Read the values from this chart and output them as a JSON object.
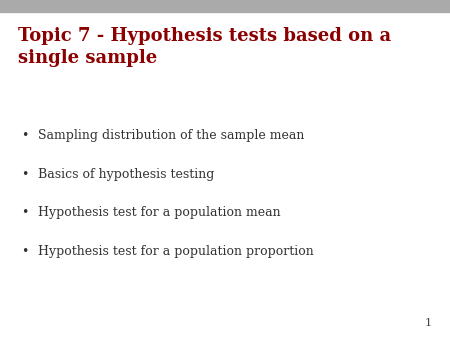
{
  "title_line1": "Topic 7 - Hypothesis tests based on a",
  "title_line2": "single sample",
  "title_color": "#8B0000",
  "title_fontsize": 13,
  "title_fontweight": "bold",
  "bullet_items": [
    "Sampling distribution of the sample mean",
    "Basics of hypothesis testing",
    "Hypothesis test for a population mean",
    "Hypothesis test for a population proportion"
  ],
  "bullet_color": "#333333",
  "bullet_fontsize": 9,
  "background_color": "#ffffff",
  "top_bar_color": "#aaaaaa",
  "page_number": "1",
  "page_number_color": "#444444",
  "page_number_fontsize": 8
}
